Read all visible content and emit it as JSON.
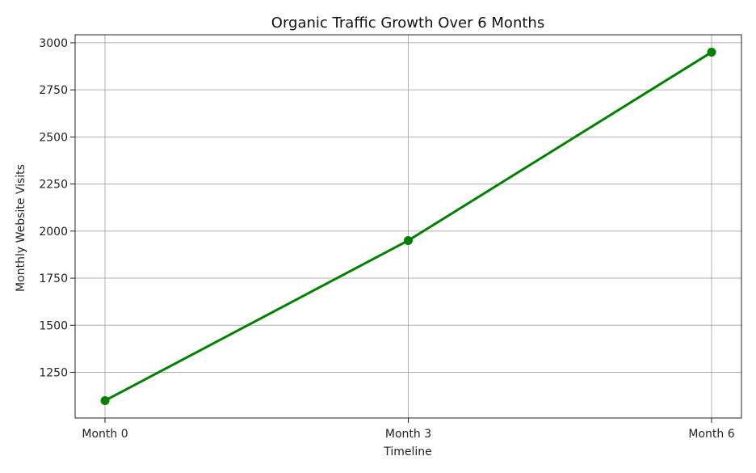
{
  "chart_data": {
    "type": "line",
    "title": "Organic Traffic Growth Over 6 Months",
    "xlabel": "Timeline",
    "ylabel": "Monthly Website Visits",
    "categories": [
      "Month 0",
      "Month 3",
      "Month 6"
    ],
    "series": [
      {
        "values": [
          1100,
          1950,
          2950
        ],
        "color": "#008000",
        "marker": "circle"
      }
    ],
    "yticks": [
      1250,
      1500,
      1750,
      2000,
      2250,
      2500,
      2750,
      3000
    ],
    "ylim": [
      1007.5,
      3042.5
    ],
    "grid": true,
    "legend": "none"
  }
}
